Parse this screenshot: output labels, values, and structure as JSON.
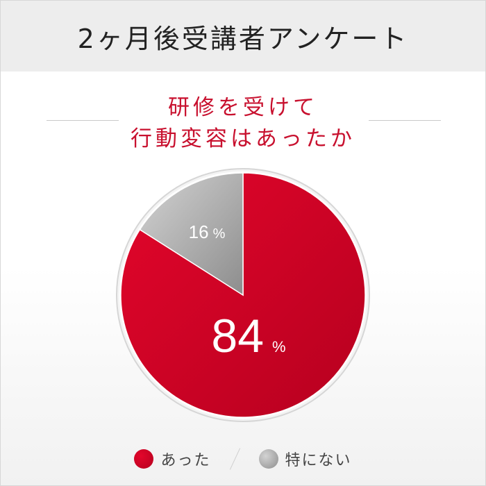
{
  "header": {
    "title": "2ヶ月後受講者アンケート"
  },
  "subtitle": {
    "line1": "研修を受けて",
    "line2": "行動変容はあったか"
  },
  "colors": {
    "red_light": "#e3062b",
    "red_dark": "#b6001f",
    "gray_light": "#d3d3d3",
    "gray_dark": "#8d8d8d",
    "accent": "#c8102e"
  },
  "chart_data": {
    "type": "pie",
    "slices": [
      {
        "label": "あった",
        "value": 84,
        "unit": "%",
        "color": "red"
      },
      {
        "label": "特にない",
        "value": 16,
        "unit": "%",
        "color": "gray"
      }
    ],
    "legend": "bottom"
  }
}
